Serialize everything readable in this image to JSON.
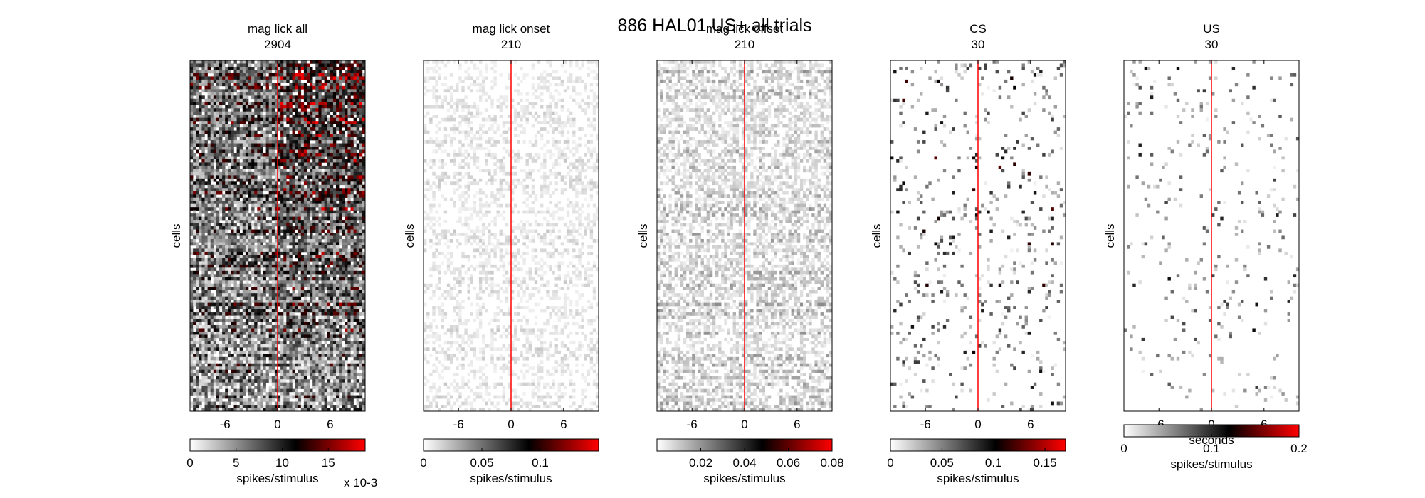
{
  "figure": {
    "suptitle": "886 HAL01 US+ all trials",
    "ylabel": "cells",
    "xlabel": "seconds"
  },
  "colors": {
    "marker": "#ff0000",
    "cmap_low": "#ffffff",
    "cmap_mid": "#000000",
    "cmap_high": "#ff0000",
    "axes": "#000000"
  },
  "chart_data": [
    {
      "type": "heatmap",
      "title": "mag lick  all",
      "subtitle": "2904",
      "ylabel": "cells",
      "xlabel": "seconds",
      "xlim": [
        -10,
        10
      ],
      "xticks": [
        -6,
        0,
        6
      ],
      "marker_x": 0,
      "colorbar": {
        "label": "spikes/stimulus",
        "range": [
          0,
          0.019
        ],
        "ticks": [
          0,
          5,
          10,
          15
        ],
        "exponent": "x 10-3"
      },
      "density": 0.92,
      "intensity": 0.55,
      "late_bias": 0.35,
      "seed": 11
    },
    {
      "type": "heatmap",
      "title": "mag lick  onset",
      "subtitle": "210",
      "ylabel": "cells",
      "xlabel": "seconds",
      "xlim": [
        -10,
        10
      ],
      "xticks": [
        -6,
        0,
        6
      ],
      "marker_x": 0,
      "colorbar": {
        "label": "spikes/stimulus",
        "range": [
          0,
          0.15
        ],
        "ticks": [
          0,
          0.05,
          0.1
        ]
      },
      "density": 0.55,
      "intensity": 0.1,
      "late_bias": 0.0,
      "seed": 23
    },
    {
      "type": "heatmap",
      "title": "mag lick  offset",
      "subtitle": "210",
      "ylabel": "cells",
      "xlabel": "seconds",
      "xlim": [
        -10,
        10
      ],
      "xticks": [
        -6,
        0,
        6
      ],
      "marker_x": 0,
      "colorbar": {
        "label": "spikes/stimulus",
        "range": [
          0,
          0.08
        ],
        "ticks": [
          0.02,
          0.04,
          0.06,
          0.08
        ]
      },
      "density": 0.72,
      "intensity": 0.2,
      "late_bias": 0.0,
      "seed": 37
    },
    {
      "type": "heatmap",
      "title": "CS",
      "subtitle": "30",
      "ylabel": "cells",
      "xlabel": "seconds",
      "xlim": [
        -10,
        10
      ],
      "xticks": [
        -6,
        0,
        6
      ],
      "marker_x": 0,
      "colorbar": {
        "label": "spikes/stimulus",
        "range": [
          0,
          0.17
        ],
        "ticks": [
          0,
          0.05,
          0.1,
          0.15
        ]
      },
      "density": 0.1,
      "intensity": 0.55,
      "late_bias": 0.0,
      "seed": 51
    },
    {
      "type": "heatmap",
      "title": "US",
      "subtitle": "30",
      "ylabel": "cells",
      "xlabel": "seconds",
      "xlim": [
        -10,
        10
      ],
      "xticks": [
        -6,
        0,
        6
      ],
      "marker_x": 0,
      "colorbar": {
        "label": "spikes/stimulus",
        "range": [
          0,
          0.2
        ],
        "ticks": [
          0,
          0.1,
          0.2
        ]
      },
      "density": 0.05,
      "intensity": 0.45,
      "late_bias": 0.0,
      "seed": 67
    }
  ]
}
